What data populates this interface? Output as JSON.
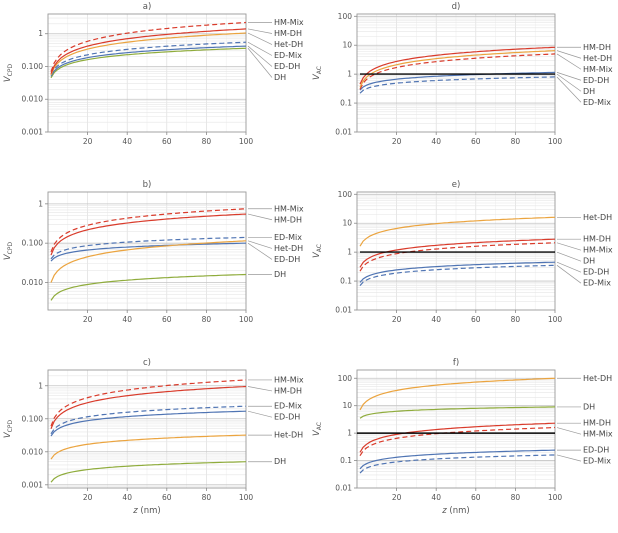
{
  "chart_data": {
    "type": "line",
    "xlim": [
      0,
      100
    ],
    "xticks": [
      20,
      40,
      60,
      80,
      100
    ],
    "x_minor_ticks": [
      10,
      30,
      50,
      70,
      90
    ],
    "colors": {
      "HM": "#d93b2b",
      "ED": "#4f74b3",
      "Het": "#eba43f",
      "DH_green": "#8fac3c",
      "DH_black": "#000000",
      "leader": "#999999",
      "grid_minor": "#e6e6e6",
      "grid_major": "#c4c4c4",
      "frame": "#999999",
      "text": "#555555"
    },
    "panels": [
      {
        "id": "a",
        "title": "a)",
        "ylabel_base": "V",
        "ylabel_sub": "CPD",
        "xlabel_italic": "",
        "xlabel_rest": "",
        "ylim": [
          0.001,
          4
        ],
        "yticks": [
          {
            "v": 0.001,
            "label": "0.001"
          },
          {
            "v": 0.01,
            "label": "0.010"
          },
          {
            "v": 0.1,
            "label": "0.100"
          },
          {
            "v": 1,
            "label": "1"
          }
        ],
        "unity_line": false,
        "series": [
          {
            "name": "DH",
            "color": "#8fac3c",
            "dash": false,
            "y1": 0.045,
            "y2": 0.36
          },
          {
            "name": "ED-DH",
            "color": "#4f74b3",
            "dash": false,
            "y1": 0.05,
            "y2": 0.42
          },
          {
            "name": "ED-Mix",
            "color": "#4f74b3",
            "dash": true,
            "y1": 0.055,
            "y2": 0.55
          },
          {
            "name": "Het-DH",
            "color": "#eba43f",
            "dash": false,
            "y1": 0.055,
            "y2": 1.05
          },
          {
            "name": "HM-DH",
            "color": "#d93b2b",
            "dash": false,
            "y1": 0.06,
            "y2": 1.4
          },
          {
            "name": "HM-Mix",
            "color": "#d93b2b",
            "dash": true,
            "y1": 0.07,
            "y2": 2.2
          }
        ],
        "labels": [
          "HM-Mix",
          "HM-DH",
          "Het-DH",
          "ED-Mix",
          "ED-DH",
          "DH"
        ]
      },
      {
        "id": "b",
        "title": "b)",
        "ylabel_base": "V",
        "ylabel_sub": "CPD",
        "xlabel_italic": "",
        "xlabel_rest": "",
        "ylim": [
          0.002,
          2
        ],
        "yticks": [
          {
            "v": 0.01,
            "label": "0.010"
          },
          {
            "v": 0.1,
            "label": "0.100"
          },
          {
            "v": 1,
            "label": "1"
          }
        ],
        "unity_line": false,
        "series": [
          {
            "name": "DH",
            "color": "#8fac3c",
            "dash": false,
            "y1": 0.0035,
            "y2": 0.016
          },
          {
            "name": "ED-DH",
            "color": "#4f74b3",
            "dash": false,
            "y1": 0.035,
            "y2": 0.1
          },
          {
            "name": "Het-DH",
            "color": "#eba43f",
            "dash": false,
            "y1": 0.01,
            "y2": 0.115
          },
          {
            "name": "ED-Mix",
            "color": "#4f74b3",
            "dash": true,
            "y1": 0.04,
            "y2": 0.14
          },
          {
            "name": "HM-DH",
            "color": "#d93b2b",
            "dash": false,
            "y1": 0.05,
            "y2": 0.55
          },
          {
            "name": "HM-Mix",
            "color": "#d93b2b",
            "dash": true,
            "y1": 0.06,
            "y2": 0.75
          }
        ],
        "labels": [
          "HM-Mix",
          "HM-DH",
          "ED-Mix",
          "Het-DH",
          "ED-DH",
          "DH"
        ]
      },
      {
        "id": "c",
        "title": "c)",
        "ylabel_base": "V",
        "ylabel_sub": "CPD",
        "xlabel_italic": "z",
        "xlabel_rest": " (nm)",
        "ylim": [
          0.0008,
          3
        ],
        "yticks": [
          {
            "v": 0.001,
            "label": "0.001"
          },
          {
            "v": 0.01,
            "label": "0.010"
          },
          {
            "v": 0.1,
            "label": "0.100"
          },
          {
            "v": 1,
            "label": "1"
          }
        ],
        "unity_line": false,
        "series": [
          {
            "name": "DH",
            "color": "#8fac3c",
            "dash": false,
            "y1": 0.0012,
            "y2": 0.005
          },
          {
            "name": "Het-DH",
            "color": "#eba43f",
            "dash": false,
            "y1": 0.006,
            "y2": 0.032
          },
          {
            "name": "ED-DH",
            "color": "#4f74b3",
            "dash": false,
            "y1": 0.03,
            "y2": 0.17
          },
          {
            "name": "ED-Mix",
            "color": "#4f74b3",
            "dash": true,
            "y1": 0.035,
            "y2": 0.24
          },
          {
            "name": "HM-DH",
            "color": "#d93b2b",
            "dash": false,
            "y1": 0.05,
            "y2": 0.95
          },
          {
            "name": "HM-Mix",
            "color": "#d93b2b",
            "dash": true,
            "y1": 0.06,
            "y2": 1.5
          }
        ],
        "labels": [
          "HM-Mix",
          "HM-DH",
          "ED-Mix",
          "ED-DH",
          "Het-DH",
          "DH"
        ]
      },
      {
        "id": "d",
        "title": "d)",
        "ylabel_base": "V",
        "ylabel_sub": "AC",
        "xlabel_italic": "",
        "xlabel_rest": "",
        "ylim": [
          0.01,
          120
        ],
        "yticks": [
          {
            "v": 0.01,
            "label": "0.01"
          },
          {
            "v": 0.1,
            "label": "0.1"
          },
          {
            "v": 1,
            "label": "1"
          },
          {
            "v": 10,
            "label": "10"
          },
          {
            "v": 100,
            "label": "100"
          }
        ],
        "unity_line": false,
        "series": [
          {
            "name": "ED-Mix",
            "color": "#4f74b3",
            "dash": true,
            "y1": 0.22,
            "y2": 0.8
          },
          {
            "name": "ED-DH",
            "color": "#4f74b3",
            "dash": false,
            "y1": 0.28,
            "y2": 1.15
          },
          {
            "name": "HM-Mix",
            "color": "#d93b2b",
            "dash": true,
            "y1": 0.3,
            "y2": 5
          },
          {
            "name": "Het-DH",
            "color": "#eba43f",
            "dash": false,
            "y1": 0.35,
            "y2": 6.5
          },
          {
            "name": "HM-DH",
            "color": "#d93b2b",
            "dash": false,
            "y1": 0.45,
            "y2": 8.5
          },
          {
            "name": "DH",
            "color": "#000000",
            "dash": false,
            "y1": 1,
            "y2": 1
          }
        ],
        "labels": [
          "HM-DH",
          "Het-DH",
          "HM-Mix",
          "ED-DH",
          "DH",
          "ED-Mix"
        ]
      },
      {
        "id": "e",
        "title": "e)",
        "ylabel_base": "V",
        "ylabel_sub": "AC",
        "xlabel_italic": "",
        "xlabel_rest": "",
        "ylim": [
          0.01,
          120
        ],
        "yticks": [
          {
            "v": 0.01,
            "label": "0.01"
          },
          {
            "v": 0.1,
            "label": "0.1"
          },
          {
            "v": 1,
            "label": "1"
          },
          {
            "v": 10,
            "label": "10"
          },
          {
            "v": 100,
            "label": "100"
          }
        ],
        "unity_line": false,
        "series": [
          {
            "name": "ED-Mix",
            "color": "#4f74b3",
            "dash": true,
            "y1": 0.07,
            "y2": 0.35
          },
          {
            "name": "ED-DH",
            "color": "#4f74b3",
            "dash": false,
            "y1": 0.09,
            "y2": 0.45
          },
          {
            "name": "HM-Mix",
            "color": "#d93b2b",
            "dash": true,
            "y1": 0.22,
            "y2": 2.1
          },
          {
            "name": "HM-DH",
            "color": "#d93b2b",
            "dash": false,
            "y1": 0.3,
            "y2": 2.8
          },
          {
            "name": "Het-DH",
            "color": "#eba43f",
            "dash": false,
            "y1": 1.6,
            "y2": 16
          },
          {
            "name": "DH",
            "color": "#000000",
            "dash": false,
            "y1": 1,
            "y2": 1
          }
        ],
        "labels": [
          "Het-DH",
          "HM-DH",
          "HM-Mix",
          "DH",
          "ED-DH",
          "ED-Mix"
        ]
      },
      {
        "id": "f",
        "title": "f)",
        "ylabel_base": "V",
        "ylabel_sub": "AC",
        "xlabel_italic": "z",
        "xlabel_rest": " (nm)",
        "ylim": [
          0.01,
          200
        ],
        "yticks": [
          {
            "v": 0.01,
            "label": "0.01"
          },
          {
            "v": 0.1,
            "label": "0.1"
          },
          {
            "v": 1,
            "label": "1"
          },
          {
            "v": 10,
            "label": "10"
          },
          {
            "v": 100,
            "label": "100"
          }
        ],
        "unity_line": true,
        "series": [
          {
            "name": "ED-Mix",
            "color": "#4f74b3",
            "dash": true,
            "y1": 0.035,
            "y2": 0.16
          },
          {
            "name": "ED-DH",
            "color": "#4f74b3",
            "dash": false,
            "y1": 0.05,
            "y2": 0.24
          },
          {
            "name": "HM-Mix",
            "color": "#d93b2b",
            "dash": true,
            "y1": 0.15,
            "y2": 1.6
          },
          {
            "name": "HM-DH",
            "color": "#d93b2b",
            "dash": false,
            "y1": 0.2,
            "y2": 2.3
          },
          {
            "name": "DH",
            "color": "#8fac3c",
            "dash": false,
            "y1": 3.5,
            "y2": 9
          },
          {
            "name": "Het-DH",
            "color": "#eba43f",
            "dash": false,
            "y1": 7,
            "y2": 100
          }
        ],
        "labels": [
          "Het-DH",
          "DH",
          "HM-DH",
          "HM-Mix",
          "ED-DH",
          "ED-Mix"
        ]
      }
    ]
  }
}
